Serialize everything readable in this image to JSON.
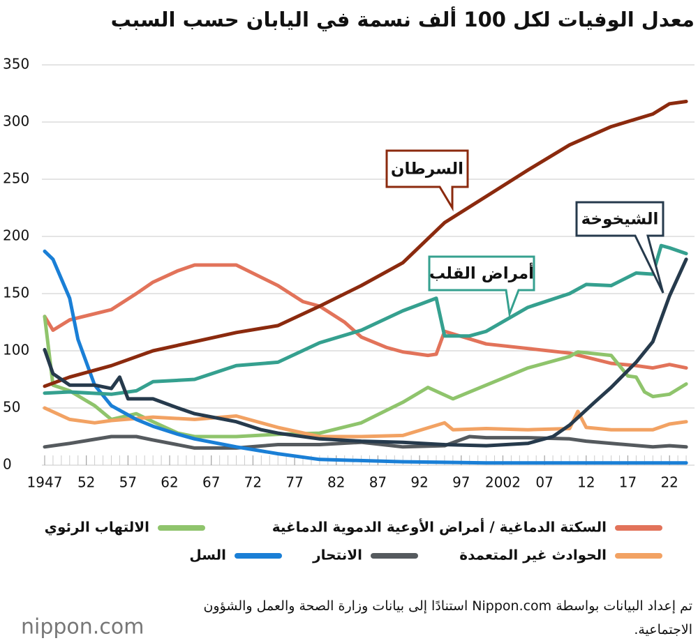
{
  "chart_data": {
    "type": "line",
    "title": "معدل الوفيات لكل 100 ألف نسمة في اليابان حسب السبب",
    "xlim": [
      1947,
      2025
    ],
    "xticks": [
      {
        "value": 1947,
        "label": "1947"
      },
      {
        "value": 1952,
        "label": "52"
      },
      {
        "value": 1957,
        "label": "57"
      },
      {
        "value": 1962,
        "label": "62"
      },
      {
        "value": 1967,
        "label": "67"
      },
      {
        "value": 1972,
        "label": "72"
      },
      {
        "value": 1977,
        "label": "77"
      },
      {
        "value": 1982,
        "label": "82"
      },
      {
        "value": 1987,
        "label": "87"
      },
      {
        "value": 1992,
        "label": "92"
      },
      {
        "value": 1997,
        "label": "97"
      },
      {
        "value": 2002,
        "label": "2002"
      },
      {
        "value": 2007,
        "label": "07"
      },
      {
        "value": 2012,
        "label": "12"
      },
      {
        "value": 2017,
        "label": "17"
      },
      {
        "value": 2022,
        "label": "22"
      }
    ],
    "ylim": [
      0,
      350
    ],
    "yticks": [
      0,
      50,
      100,
      150,
      200,
      250,
      300,
      350
    ],
    "grid": true,
    "series": [
      {
        "name": "السرطان",
        "color": "#8b2a0e",
        "callout": true,
        "x": [
          1947,
          1950,
          1955,
          1960,
          1965,
          1970,
          1975,
          1980,
          1985,
          1990,
          1995,
          2000,
          2005,
          2010,
          2015,
          2020,
          2022,
          2024
        ],
        "values": [
          69,
          77,
          87,
          100,
          108,
          116,
          122,
          139,
          157,
          177,
          212,
          235,
          258,
          280,
          296,
          307,
          316,
          318
        ]
      },
      {
        "name": "أمراض القلب",
        "color": "#35a08f",
        "callout": true,
        "x": [
          1947,
          1950,
          1955,
          1958,
          1960,
          1965,
          1970,
          1975,
          1980,
          1985,
          1990,
          1994,
          1995,
          1998,
          2000,
          2005,
          2010,
          2012,
          2015,
          2018,
          2020,
          2021,
          2022,
          2024
        ],
        "values": [
          63,
          64,
          62,
          65,
          73,
          75,
          87,
          90,
          107,
          118,
          135,
          146,
          113,
          113,
          117,
          138,
          150,
          158,
          157,
          168,
          167,
          192,
          190,
          185
        ]
      },
      {
        "name": "الشيخوخة",
        "color": "#263a4c",
        "callout": true,
        "x": [
          1947,
          1948,
          1950,
          1953,
          1955,
          1956,
          1957,
          1960,
          1963,
          1965,
          1970,
          1973,
          1975,
          1980,
          1985,
          1990,
          1995,
          2000,
          2005,
          2008,
          2010,
          2013,
          2015,
          2018,
          2020,
          2022,
          2024
        ],
        "values": [
          101,
          80,
          70,
          70,
          67,
          77,
          58,
          58,
          50,
          45,
          38,
          31,
          28,
          23,
          21,
          20,
          18,
          17,
          19,
          25,
          35,
          55,
          68,
          90,
          108,
          148,
          180
        ]
      },
      {
        "name": "السكتة الدماغية / أمراض الأوعية الدموية الدماغية",
        "color": "#e2735a",
        "x": [
          1947,
          1948,
          1950,
          1955,
          1958,
          1960,
          1963,
          1965,
          1970,
          1975,
          1978,
          1980,
          1983,
          1985,
          1988,
          1990,
          1993,
          1994,
          1995,
          2000,
          2005,
          2010,
          2015,
          2018,
          2020,
          2022,
          2024
        ],
        "values": [
          130,
          118,
          127,
          136,
          150,
          160,
          170,
          175,
          175,
          157,
          143,
          139,
          125,
          112,
          103,
          99,
          96,
          97,
          117,
          106,
          102,
          98,
          89,
          87,
          85,
          88,
          85
        ]
      },
      {
        "name": "الالتهاب الرئوي",
        "color": "#8fc46c",
        "x": [
          1947,
          1948,
          1950,
          1953,
          1955,
          1958,
          1960,
          1963,
          1965,
          1970,
          1975,
          1980,
          1985,
          1990,
          1993,
          1996,
          2000,
          2005,
          2010,
          2011,
          2015,
          2017,
          2018,
          2019,
          2020,
          2022,
          2024
        ],
        "values": [
          130,
          70,
          65,
          52,
          40,
          45,
          38,
          28,
          25,
          25,
          27,
          28,
          37,
          55,
          68,
          58,
          70,
          85,
          95,
          99,
          96,
          78,
          77,
          64,
          60,
          62,
          71
        ]
      },
      {
        "name": "الحوادث غير المتعمدة",
        "color": "#f2a263",
        "x": [
          1947,
          1950,
          1953,
          1955,
          1960,
          1965,
          1970,
          1975,
          1980,
          1985,
          1990,
          1995,
          1996,
          2000,
          2005,
          2010,
          2011,
          2012,
          2015,
          2020,
          2022,
          2024
        ],
        "values": [
          50,
          40,
          37,
          39,
          42,
          40,
          43,
          33,
          25,
          25,
          26,
          37,
          31,
          32,
          31,
          32,
          47,
          33,
          31,
          31,
          36,
          38
        ]
      },
      {
        "name": "الانتحار",
        "color": "#555a5e",
        "x": [
          1947,
          1950,
          1955,
          1958,
          1960,
          1965,
          1970,
          1975,
          1980,
          1985,
          1990,
          1995,
          1998,
          2000,
          2005,
          2010,
          2012,
          2015,
          2020,
          2022,
          2024
        ],
        "values": [
          16,
          19,
          25,
          25,
          22,
          15,
          15,
          18,
          18,
          20,
          16,
          17,
          25,
          24,
          24,
          23,
          21,
          19,
          16,
          17,
          16
        ]
      },
      {
        "name": "السل",
        "color": "#1a7fd6",
        "x": [
          1947,
          1948,
          1950,
          1951,
          1953,
          1955,
          1958,
          1960,
          1963,
          1965,
          1970,
          1975,
          1980,
          1990,
          2000,
          2024
        ],
        "values": [
          187,
          180,
          146,
          110,
          70,
          52,
          40,
          34,
          27,
          23,
          16,
          10,
          5,
          3,
          2,
          2
        ]
      }
    ],
    "source": "تم إعداد البيانات بواسطة Nippon.com استنادًا إلى بيانات وزارة الصحة والعمل والشؤون الاجتماعية.",
    "logo": "nippon.com"
  }
}
